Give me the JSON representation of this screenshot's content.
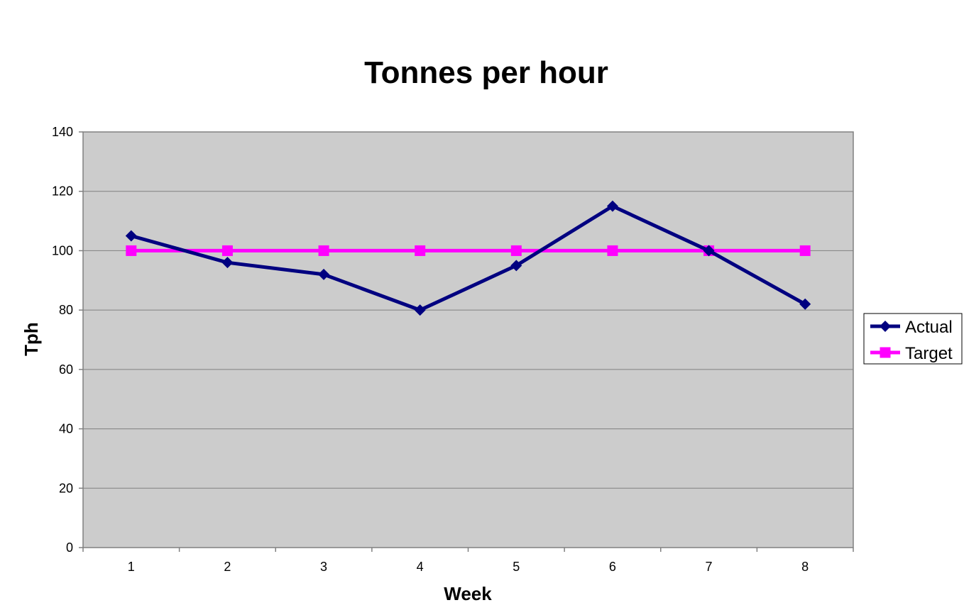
{
  "chart_data": {
    "type": "line",
    "title": "Tonnes per hour",
    "xlabel": "Week",
    "ylabel": "Tph",
    "categories": [
      "1",
      "2",
      "3",
      "4",
      "5",
      "6",
      "7",
      "8"
    ],
    "ylim": [
      0,
      140
    ],
    "yticks": [
      0,
      20,
      40,
      60,
      80,
      100,
      120,
      140
    ],
    "grid": true,
    "legend_position": "right",
    "plot_background": "#cccccc",
    "series": [
      {
        "name": "Actual",
        "values": [
          105,
          96,
          92,
          80,
          95,
          115,
          100,
          82
        ],
        "color": "#000080",
        "marker": "diamond"
      },
      {
        "name": "Target",
        "values": [
          100,
          100,
          100,
          100,
          100,
          100,
          100,
          100
        ],
        "color": "#ff00ff",
        "marker": "square"
      }
    ]
  }
}
